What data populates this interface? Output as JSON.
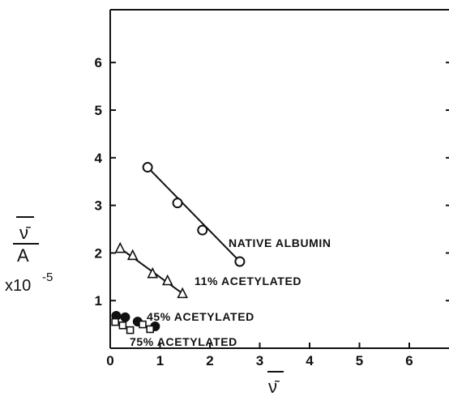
{
  "chart_data": {
    "type": "scatter",
    "title": "",
    "xlabel": "ν̄",
    "ylabel": "ν̄",
    "ylabel_denominator": "A",
    "ylabel_scale": "x10",
    "ylabel_scale_exponent": "-5",
    "xlim": [
      0,
      7
    ],
    "ylim": [
      0,
      7
    ],
    "xticks": [
      "0",
      "1",
      "2",
      "3",
      "4",
      "5",
      "6",
      "7"
    ],
    "yticks": [
      "1",
      "2",
      "3",
      "4",
      "5",
      "6"
    ],
    "grid": false,
    "legend": "none",
    "color": "#111111",
    "series": [
      {
        "name": "NATIVE ALBUMIN",
        "marker": "open-circle",
        "x": [
          0.75,
          1.35,
          1.85,
          2.6
        ],
        "y": [
          3.8,
          3.05,
          2.48,
          1.82
        ],
        "fit": [
          [
            0.75,
            3.8
          ],
          [
            2.6,
            1.82
          ]
        ]
      },
      {
        "name": "11% ACETYLATED",
        "marker": "open-triangle",
        "x": [
          0.2,
          0.45,
          0.85,
          1.15,
          1.45
        ],
        "y": [
          2.1,
          1.95,
          1.57,
          1.42,
          1.15
        ],
        "fit": [
          [
            0.2,
            2.1
          ],
          [
            1.45,
            1.15
          ]
        ]
      },
      {
        "name": "45% ACETYLATED",
        "marker": "filled-circle",
        "x": [
          0.12,
          0.3,
          0.55,
          0.9
        ],
        "y": [
          0.68,
          0.65,
          0.56,
          0.46
        ],
        "fit": null
      },
      {
        "name": "75% ACETYLATED",
        "marker": "open-square",
        "x": [
          0.1,
          0.25,
          0.4,
          0.65,
          0.8
        ],
        "y": [
          0.55,
          0.48,
          0.38,
          0.5,
          0.4
        ],
        "fit": null
      }
    ]
  }
}
